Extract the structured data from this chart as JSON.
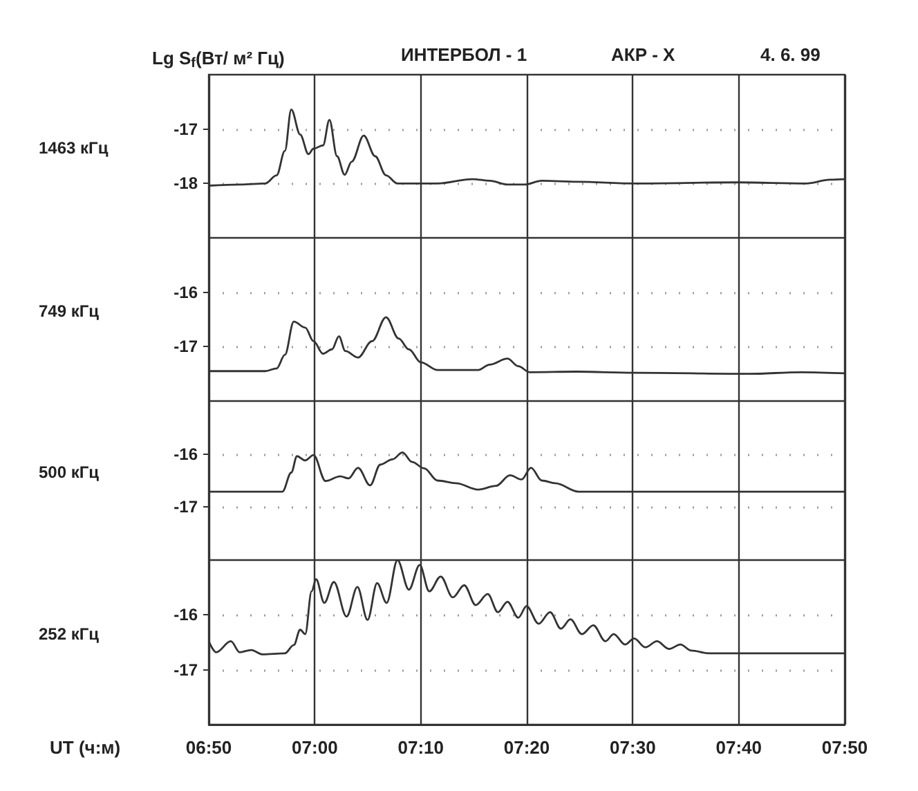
{
  "chart_data": [
    {
      "type": "line",
      "title": "Lg S$_{f}$(Вт/ м² Гц)",
      "subtitle": "ИНТЕРБОЛ - 1",
      "annotations": [
        "АКР - X",
        "4. 6. 99"
      ],
      "ylabel": "1463 кГц",
      "marker": "none",
      "grid": true,
      "tick_labels": "y",
      "xlim": [
        6.8333,
        7.8333
      ],
      "ylim": [
        -19,
        -16
      ],
      "yticks": [
        -18,
        -17
      ],
      "xticks": [
        {
          "value": 6.8333,
          "label": null
        },
        {
          "value": 7,
          "label": null
        },
        {
          "value": 7.1667,
          "label": null
        },
        {
          "value": 7.3333,
          "label": null
        },
        {
          "value": 7.5,
          "label": null
        },
        {
          "value": 7.6667,
          "label": null
        },
        {
          "value": 7.8333,
          "label": null
        }
      ],
      "series": [
        {
          "color": "#333333",
          "x": [
            6.8333,
            6.883,
            6.922,
            6.94,
            6.953,
            6.963,
            6.977,
            6.99,
            6.998,
            7.013,
            7.023,
            7.035,
            7.047,
            7.058,
            7.077,
            7.095,
            7.112,
            7.13,
            7.193,
            7.248,
            7.275,
            7.303,
            7.33,
            7.357,
            7.412,
            7.502,
            7.665,
            7.773,
            7.81,
            7.8333
          ],
          "values": [
            -18.04,
            -18.02,
            -18.0,
            -17.85,
            -17.4,
            -16.64,
            -17.1,
            -17.46,
            -17.36,
            -17.3,
            -16.83,
            -17.5,
            -17.84,
            -17.6,
            -17.12,
            -17.5,
            -17.85,
            -18.0,
            -18.0,
            -17.92,
            -17.95,
            -18.02,
            -18.02,
            -17.95,
            -17.97,
            -18.0,
            -17.98,
            -18.0,
            -17.93,
            -17.92
          ]
        }
      ]
    },
    {
      "type": "line",
      "ylabel": "749 кГц",
      "marker": "none",
      "grid": true,
      "tick_labels": "y",
      "xlim": [
        6.8333,
        7.8333
      ],
      "ylim": [
        -18,
        -15
      ],
      "yticks": [
        -17,
        -16
      ],
      "xticks": [
        {
          "value": 6.8333,
          "label": null
        },
        {
          "value": 7,
          "label": null
        },
        {
          "value": 7.1667,
          "label": null
        },
        {
          "value": 7.3333,
          "label": null
        },
        {
          "value": 7.5,
          "label": null
        },
        {
          "value": 7.6667,
          "label": null
        },
        {
          "value": 7.8333,
          "label": null
        }
      ],
      "series": [
        {
          "color": "#333333",
          "x": [
            6.8333,
            6.922,
            6.94,
            6.953,
            6.967,
            6.985,
            6.998,
            7.013,
            7.027,
            7.038,
            7.048,
            7.068,
            7.09,
            7.112,
            7.132,
            7.148,
            7.167,
            7.193,
            7.257,
            7.275,
            7.303,
            7.32,
            7.338,
            7.412,
            7.502,
            7.683,
            7.765,
            7.8333
          ],
          "values": [
            -17.45,
            -17.45,
            -17.4,
            -17.15,
            -16.54,
            -16.65,
            -16.9,
            -17.13,
            -17.05,
            -16.81,
            -17.08,
            -17.2,
            -16.9,
            -16.46,
            -16.85,
            -17.05,
            -17.29,
            -17.43,
            -17.43,
            -17.33,
            -17.22,
            -17.36,
            -17.47,
            -17.46,
            -17.48,
            -17.5,
            -17.47,
            -17.49
          ]
        }
      ]
    },
    {
      "type": "line",
      "ylabel": "500 кГц",
      "marker": "none",
      "grid": true,
      "tick_labels": "y",
      "xlim": [
        6.8333,
        7.8333
      ],
      "ylim": [
        -18,
        -15
      ],
      "yticks": [
        -17,
        -16
      ],
      "xticks": [
        {
          "value": 6.8333,
          "label": null
        },
        {
          "value": 7,
          "label": null
        },
        {
          "value": 7.1667,
          "label": null
        },
        {
          "value": 7.3333,
          "label": null
        },
        {
          "value": 7.5,
          "label": null
        },
        {
          "value": 7.6667,
          "label": null
        },
        {
          "value": 7.8333,
          "label": null
        }
      ],
      "series": [
        {
          "color": "#333333",
          "x": [
            6.8333,
            6.949,
            6.963,
            6.972,
            6.985,
            6.998,
            7.017,
            7.04,
            7.053,
            7.068,
            7.087,
            7.103,
            7.122,
            7.138,
            7.153,
            7.172,
            7.193,
            7.222,
            7.257,
            7.285,
            7.307,
            7.325,
            7.34,
            7.357,
            7.378,
            7.415,
            7.502,
            7.8333
          ],
          "values": [
            -16.71,
            -16.71,
            -16.35,
            -16.04,
            -16.12,
            -16.02,
            -16.51,
            -16.42,
            -16.46,
            -16.26,
            -16.59,
            -16.2,
            -16.1,
            -15.97,
            -16.15,
            -16.27,
            -16.5,
            -16.55,
            -16.67,
            -16.6,
            -16.4,
            -16.48,
            -16.26,
            -16.5,
            -16.55,
            -16.71,
            -16.71,
            -16.71
          ]
        }
      ]
    },
    {
      "type": "line",
      "ylabel": "252 кГц",
      "xlabel": "UT (ч:м)",
      "marker": "none",
      "grid": true,
      "xlim": [
        6.8333,
        7.8333
      ],
      "ylim": [
        -18,
        -15
      ],
      "yticks": [
        -17,
        -16
      ],
      "xticks": [
        {
          "value": 6.8333,
          "label": "06:50"
        },
        {
          "value": 7,
          "label": "07:00"
        },
        {
          "value": 7.1667,
          "label": "07:10"
        },
        {
          "value": 7.3333,
          "label": "07:20"
        },
        {
          "value": 7.5,
          "label": "07:30"
        },
        {
          "value": 7.6667,
          "label": "07:40"
        },
        {
          "value": 7.8333,
          "label": "07:50"
        }
      ],
      "series": [
        {
          "color": "#333333",
          "x": [
            6.8333,
            6.845,
            6.868,
            6.882,
            6.9,
            6.918,
            6.953,
            6.967,
            6.977,
            6.985,
            6.995,
            7.002,
            7.015,
            7.03,
            7.05,
            7.067,
            7.083,
            7.098,
            7.113,
            7.13,
            7.148,
            7.165,
            7.18,
            7.198,
            7.217,
            7.235,
            7.253,
            7.272,
            7.288,
            7.303,
            7.32,
            7.333,
            7.352,
            7.37,
            7.387,
            7.402,
            7.42,
            7.438,
            7.457,
            7.47,
            7.488,
            7.502,
            7.52,
            7.538,
            7.557,
            7.575,
            7.592,
            7.62,
            7.647,
            7.683,
            7.8333
          ],
          "values": [
            -16.48,
            -16.68,
            -16.48,
            -16.68,
            -16.64,
            -16.72,
            -16.7,
            -16.55,
            -16.27,
            -16.35,
            -15.57,
            -15.35,
            -15.78,
            -15.4,
            -16.03,
            -15.49,
            -16.09,
            -15.42,
            -15.78,
            -15.0,
            -15.54,
            -15.09,
            -15.57,
            -15.3,
            -15.68,
            -15.46,
            -15.82,
            -15.62,
            -15.95,
            -15.76,
            -16.05,
            -15.84,
            -16.16,
            -15.95,
            -16.25,
            -16.08,
            -16.35,
            -16.19,
            -16.48,
            -16.35,
            -16.54,
            -16.43,
            -16.59,
            -16.48,
            -16.62,
            -16.54,
            -16.65,
            -16.7,
            -16.7,
            -16.7,
            -16.7
          ]
        }
      ]
    }
  ]
}
